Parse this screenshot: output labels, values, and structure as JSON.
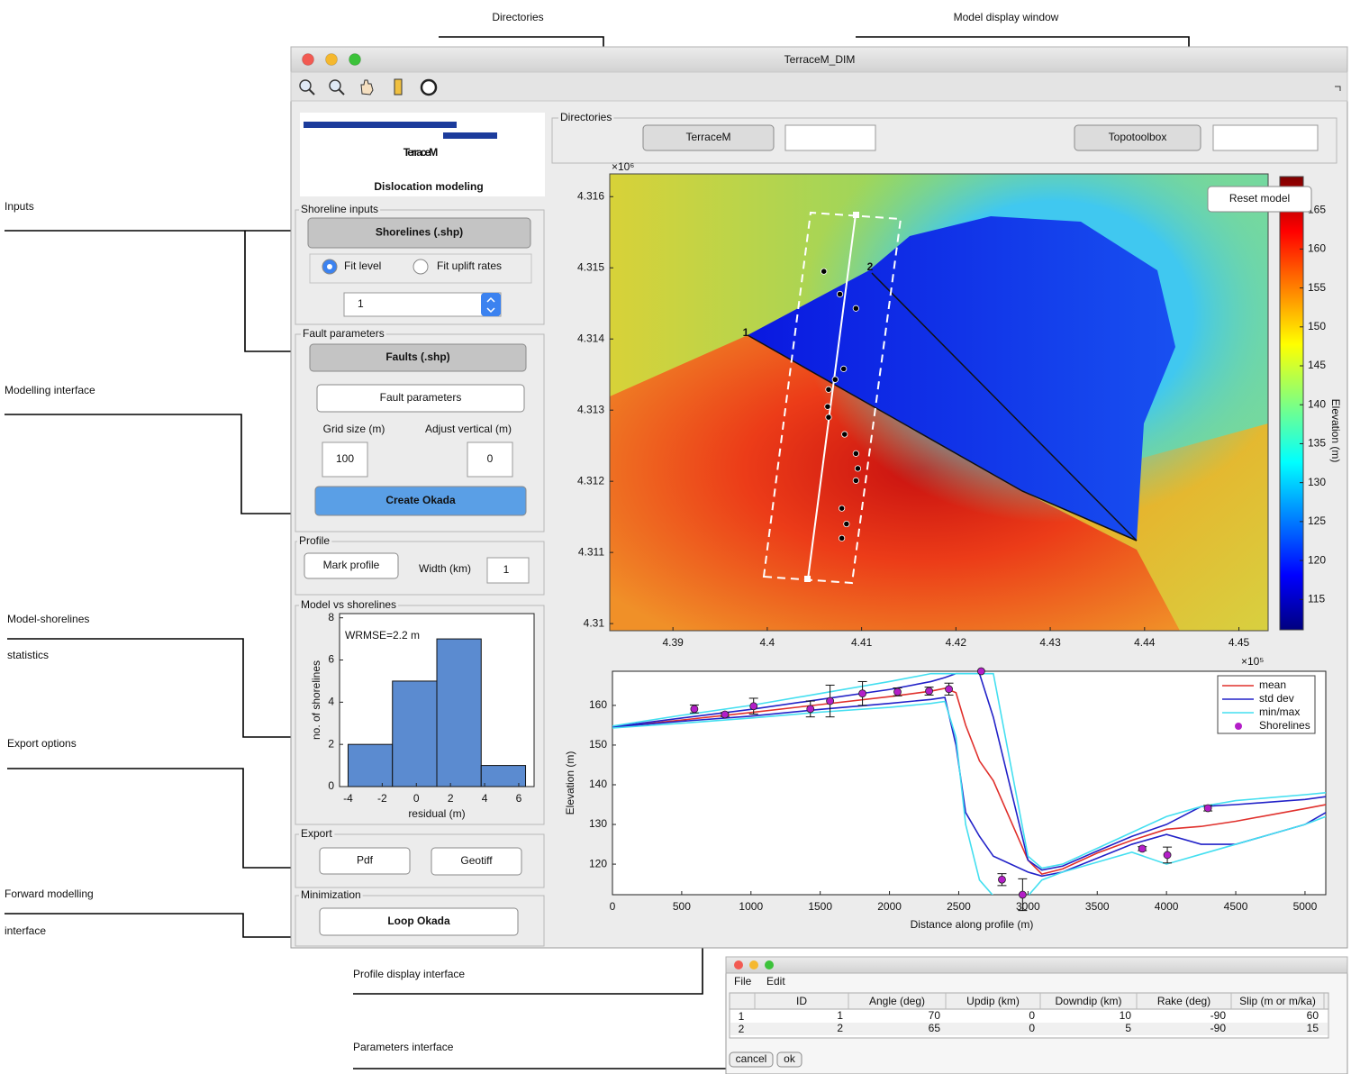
{
  "window": {
    "title": "TerraceM_DIM"
  },
  "annotations": {
    "directories": "Directories",
    "model_display": "Model display window",
    "inputs": "Inputs",
    "modelling": "Modelling interface",
    "statistics": [
      "Model-shorelines",
      "statistics"
    ],
    "export": "Export options",
    "forward": [
      "Forward modelling",
      "interface"
    ],
    "profile": "Profile display interface",
    "parameters": "Parameters interface"
  },
  "logo": {
    "name": "TerraceM",
    "subtitle": "Dislocation modeling"
  },
  "shoreline_inputs": {
    "title": "Shoreline inputs",
    "button": "Shorelines (.shp)",
    "options": [
      "Fit level",
      "Fit uplift rates"
    ],
    "selected": 0,
    "dropdown": "1"
  },
  "fault_parameters": {
    "title": "Fault parameters",
    "button": "Faults (.shp)",
    "params_button": "Fault parameters",
    "grid_label": "Grid size (m)",
    "grid_value": "100",
    "adjust_label": "Adjust vertical (m)",
    "adjust_value": "0",
    "create": "Create Okada"
  },
  "profile": {
    "title": "Profile",
    "button": "Mark profile",
    "width_label": "Width (km)",
    "width_value": "1"
  },
  "stats_title": "Model vs shorelines",
  "export": {
    "title": "Export",
    "buttons": [
      "Pdf",
      "Geotiff"
    ]
  },
  "minimization": {
    "title": "Minimization",
    "button": "Loop Okada"
  },
  "directories": {
    "title": "Directories",
    "buttons": [
      "TerraceM",
      "Topotoolbox"
    ]
  },
  "reset_button": "Reset model",
  "params_window": {
    "menu": [
      "File",
      "Edit"
    ],
    "columns": [
      "ID",
      "Angle (deg)",
      "Updip (km)",
      "Downdip (km)",
      "Rake (deg)",
      "Slip (m or m/ka)"
    ],
    "row_labels": [
      1,
      2
    ],
    "rows": [
      [
        1,
        70,
        0,
        10,
        -90,
        60
      ],
      [
        2,
        65,
        0,
        5,
        -90,
        15
      ]
    ],
    "buttons": [
      "cancel",
      "ok"
    ]
  },
  "chart_data": [
    {
      "type": "histogram",
      "annotation": "WRMSE=2.2 m",
      "xlabel": "residual (m)",
      "ylabel": "no. of shorelines",
      "bins": [
        -4,
        -1.4,
        1.2,
        3.8,
        6.4
      ],
      "values": [
        2,
        5,
        7,
        1
      ],
      "color": "#5b8bd0",
      "xlim": [
        -4.5,
        6.9
      ],
      "ylim": [
        0,
        8.2
      ],
      "xticks": [
        -4,
        -2,
        0,
        2,
        4,
        6
      ],
      "yticks": [
        0,
        2,
        4,
        6,
        8
      ]
    },
    {
      "type": "scatter",
      "x_exponent": "×10⁵",
      "y_exponent": "×10⁶",
      "color": "#000000",
      "fault_labels": [
        "1",
        "2"
      ],
      "x": [
        4.406,
        4.4077,
        4.4094,
        4.4081,
        4.4072,
        4.4065,
        4.4064,
        4.4065,
        4.4082,
        4.4094,
        4.4096,
        4.4094,
        4.4079,
        4.4084,
        4.4079
      ],
      "values": [
        4.31495,
        4.31463,
        4.31443,
        4.31358,
        4.31343,
        4.31329,
        4.31305,
        4.3129,
        4.31266,
        4.31239,
        4.31218,
        4.31201,
        4.31162,
        4.3114,
        4.3112
      ],
      "xlim": [
        4.3833,
        4.4531
      ],
      "ylim": [
        4.3099,
        4.31632
      ],
      "xticks": [
        4.39,
        4.4,
        4.41,
        4.42,
        4.43,
        4.44,
        4.45
      ],
      "yticks": [
        4.31,
        4.311,
        4.312,
        4.313,
        4.314,
        4.315,
        4.316
      ],
      "colorbar": {
        "label": "Elevation (m)",
        "lim": [
          111.1,
          169.3
        ],
        "ticks": [
          115,
          120,
          125,
          130,
          135,
          140,
          145,
          150,
          155,
          160,
          165
        ]
      }
    },
    {
      "type": "line",
      "xlabel": "Distance along profile (m)",
      "ylabel": "Elevation (m)",
      "legend": "upper right",
      "x": [
        0,
        500,
        1000,
        1500,
        2000,
        2300,
        2400,
        2480,
        2550,
        2650,
        2750,
        3000,
        3100,
        3250,
        3500,
        3750,
        4000,
        4250,
        4500,
        5000,
        5150
      ],
      "series": [
        {
          "name": "mean",
          "color": "#e0302c",
          "values": [
            154.5,
            156.3,
            158.2,
            160.2,
            162.2,
            163.6,
            164.3,
            163.2,
            155,
            146,
            141,
            121,
            117.5,
            118.8,
            122.8,
            126,
            128.8,
            129.5,
            130.8,
            134,
            135
          ]
        },
        {
          "name": "std dev",
          "color": "#2222c8",
          "upper": [
            154.6,
            156.8,
            159,
            161.5,
            164,
            166,
            167,
            168,
            168,
            168,
            157,
            121,
            118.5,
            119.5,
            123.3,
            127,
            130,
            134.5,
            135,
            136.3,
            137
          ],
          "lower": [
            154.5,
            156,
            157.3,
            159,
            160.5,
            161.5,
            162,
            150,
            133,
            127,
            122,
            118,
            117,
            118,
            121.5,
            125,
            127.5,
            125,
            125,
            130,
            133
          ]
        },
        {
          "name": "min/max",
          "color": "#44dff0",
          "upper": [
            154.8,
            157.5,
            160,
            163,
            166,
            168,
            168,
            168,
            168,
            168,
            168,
            122,
            119,
            120,
            124,
            128,
            132,
            134.5,
            136,
            137.5,
            138
          ],
          "lower": [
            154.3,
            155.5,
            156.8,
            158.3,
            159.5,
            160.5,
            161,
            152,
            130,
            116,
            112,
            112,
            116,
            118,
            120.5,
            123,
            120,
            122.5,
            125,
            130,
            132
          ]
        }
      ],
      "shorelines": {
        "name": "Shorelines",
        "color": "#b41ec8",
        "x": [
          591,
          812,
          1019,
          1429,
          1571,
          1805,
          2058,
          2286,
          2429,
          2662,
          2812,
          2961,
          3825,
          4006,
          4299
        ],
        "values": [
          159.1,
          157.7,
          159.8,
          159.1,
          161.1,
          163,
          163.4,
          163.6,
          164.1,
          168.6,
          116.1,
          112.3,
          123.9,
          122.3,
          134.1
        ],
        "errors": [
          1,
          0.5,
          2,
          2,
          4,
          3,
          1,
          1,
          1.5,
          0,
          1.5,
          4,
          0.5,
          2,
          0.7
        ]
      },
      "xlim": [
        0,
        5150
      ],
      "ylim": [
        112.3,
        168.6
      ],
      "xticks": [
        0,
        500,
        1000,
        1500,
        2000,
        2500,
        3000,
        3500,
        4000,
        4500,
        5000
      ],
      "yticks": [
        120,
        130,
        140,
        150,
        160
      ]
    }
  ]
}
